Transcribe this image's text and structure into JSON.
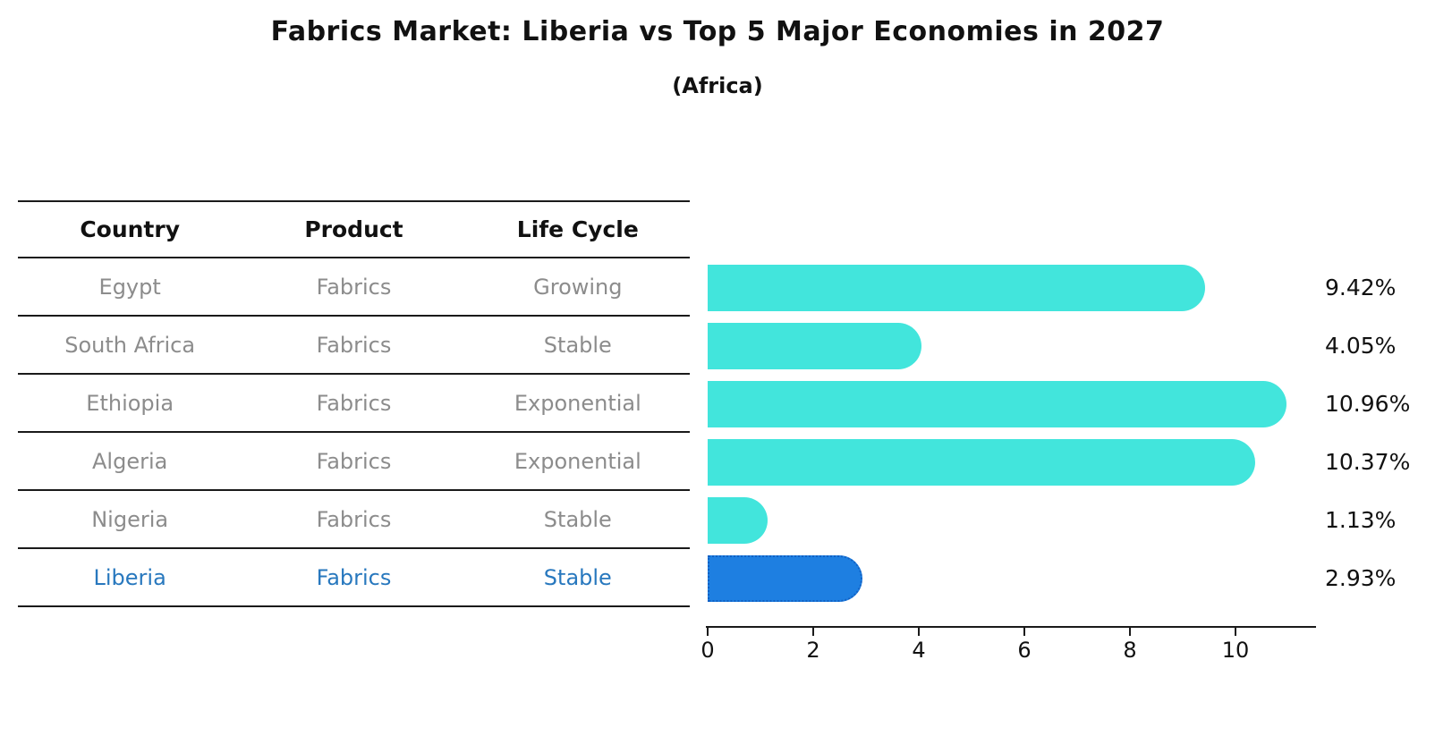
{
  "title": "Fabrics Market: Liberia vs Top 5 Major Economies in 2027",
  "subtitle": "(Africa)",
  "table": {
    "headers": [
      "Country",
      "Product",
      "Life Cycle"
    ]
  },
  "chart_data": {
    "type": "bar",
    "orientation": "horizontal",
    "title": "Fabrics Market: Liberia vs Top 5 Major Economies in 2027",
    "subtitle": "(Africa)",
    "categories": [
      "Egypt",
      "South Africa",
      "Ethiopia",
      "Algeria",
      "Nigeria",
      "Liberia"
    ],
    "rows": [
      {
        "country": "Egypt",
        "product": "Fabrics",
        "life_cycle": "Growing",
        "value": 9.42,
        "label": "9.42%",
        "highlight": false
      },
      {
        "country": "South Africa",
        "product": "Fabrics",
        "life_cycle": "Stable",
        "value": 4.05,
        "label": "4.05%",
        "highlight": false
      },
      {
        "country": "Ethiopia",
        "product": "Fabrics",
        "life_cycle": "Exponential",
        "value": 10.96,
        "label": "10.96%",
        "highlight": false
      },
      {
        "country": "Algeria",
        "product": "Fabrics",
        "life_cycle": "Exponential",
        "value": 10.37,
        "label": "10.37%",
        "highlight": false
      },
      {
        "country": "Nigeria",
        "product": "Fabrics",
        "life_cycle": "Stable",
        "value": 1.13,
        "label": "1.13%",
        "highlight": false
      },
      {
        "country": "Liberia",
        "product": "Fabrics",
        "life_cycle": "Stable",
        "value": 2.93,
        "label": "2.93%",
        "highlight": true
      }
    ],
    "x_ticks": [
      0,
      2,
      4,
      6,
      8,
      10
    ],
    "xlim": [
      0,
      11.5
    ],
    "grid": false,
    "legend": null,
    "colors": {
      "bar": "#42E5DC",
      "highlight_bar": "#1E7FE1",
      "highlight_border": "#1261C4",
      "highlight_text": "#2878BE",
      "row_text": "#8c8c8c",
      "header_text": "#111111",
      "axis": "#1a1a1a"
    }
  }
}
